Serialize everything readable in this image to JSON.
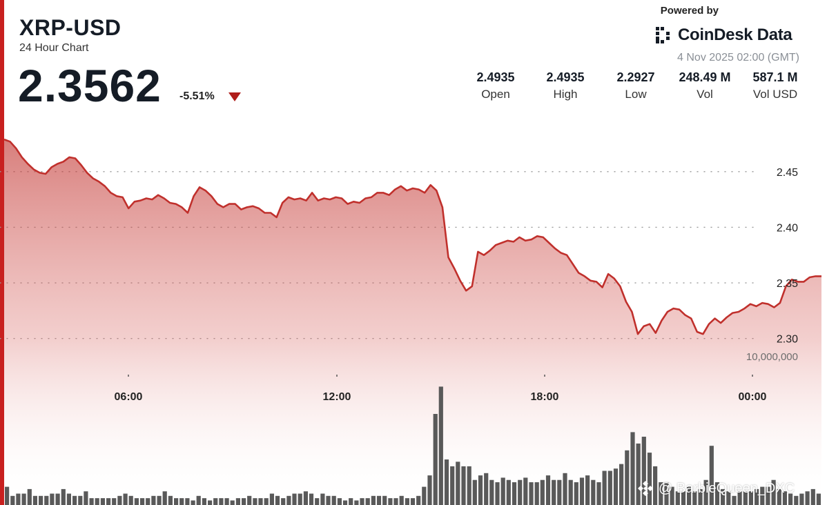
{
  "header": {
    "title": "XRP-USD",
    "subtitle": "24 Hour Chart",
    "price": "2.3562",
    "change": "-5.51%",
    "powered_by": "Powered by",
    "brand": "CoinDesk Data",
    "timestamp": "4 Nov 2025 02:00 (GMT)"
  },
  "stats": [
    {
      "value": "2.4935",
      "label": "Open"
    },
    {
      "value": "2.4935",
      "label": "High"
    },
    {
      "value": "2.2927",
      "label": "Low"
    },
    {
      "value": "248.49 M",
      "label": "Vol"
    },
    {
      "value": "587.1 M",
      "label": "Vol USD"
    }
  ],
  "watermark": "@ BarbieQueen_DXC",
  "colors": {
    "accent": "#c8201f",
    "line": "#c0302c",
    "volume": "#555555",
    "text": "#151c26"
  },
  "chart_data": [
    {
      "type": "area",
      "x_tick_labels": [
        "06:00",
        "12:00",
        "18:00",
        "00:00"
      ],
      "y_tick_labels": [
        "2.45",
        "2.40",
        "2.35",
        "2.30"
      ],
      "ylim": [
        2.288,
        2.484
      ],
      "grid": true,
      "series": [
        {
          "values": [
            2.479,
            2.477,
            2.471,
            2.463,
            2.457,
            2.452,
            2.449,
            2.448,
            2.454,
            2.457,
            2.459,
            2.463,
            2.462,
            2.456,
            2.449,
            2.444,
            2.441,
            2.437,
            2.431,
            2.428,
            2.427,
            2.417,
            2.423,
            2.424,
            2.426,
            2.425,
            2.429,
            2.426,
            2.422,
            2.421,
            2.418,
            2.413,
            2.428,
            2.436,
            2.433,
            2.428,
            2.421,
            2.418,
            2.421,
            2.421,
            2.416,
            2.418,
            2.419,
            2.417,
            2.413,
            2.413,
            2.409,
            2.422,
            2.427,
            2.425,
            2.426,
            2.424,
            2.431,
            2.424,
            2.426,
            2.425,
            2.427,
            2.426,
            2.421,
            2.423,
            2.422,
            2.426,
            2.427,
            2.431,
            2.431,
            2.429,
            2.434,
            2.437,
            2.433,
            2.435,
            2.434,
            2.431,
            2.438,
            2.433,
            2.418,
            2.373,
            2.363,
            2.352,
            2.343,
            2.347,
            2.378,
            2.375,
            2.379,
            2.384,
            2.386,
            2.388,
            2.387,
            2.391,
            2.388,
            2.389,
            2.392,
            2.391,
            2.386,
            2.381,
            2.377,
            2.375,
            2.367,
            2.359,
            2.356,
            2.352,
            2.351,
            2.346,
            2.358,
            2.354,
            2.347,
            2.333,
            2.324,
            2.304,
            2.311,
            2.313,
            2.305,
            2.316,
            2.324,
            2.327,
            2.326,
            2.321,
            2.318,
            2.306,
            2.304,
            2.313,
            2.318,
            2.314,
            2.319,
            2.323,
            2.324,
            2.327,
            2.331,
            2.329,
            2.332,
            2.331,
            2.328,
            2.332,
            2.347,
            2.353,
            2.351,
            2.351,
            2.355,
            2.356,
            2.356
          ]
        }
      ]
    },
    {
      "type": "bar",
      "axis_label": "10,000,000",
      "values": [
        8,
        4,
        5,
        5,
        7,
        4,
        4,
        4,
        5,
        5,
        7,
        5,
        4,
        4,
        6,
        3,
        3,
        3,
        3,
        3,
        4,
        5,
        4,
        3,
        3,
        3,
        4,
        4,
        6,
        4,
        3,
        3,
        3,
        2,
        4,
        3,
        2,
        3,
        3,
        3,
        2,
        3,
        3,
        4,
        3,
        3,
        3,
        5,
        4,
        3,
        4,
        5,
        5,
        6,
        5,
        3,
        5,
        4,
        4,
        3,
        2,
        3,
        2,
        3,
        3,
        4,
        4,
        4,
        3,
        3,
        4,
        3,
        3,
        4,
        8,
        13,
        40,
        52,
        20,
        17,
        19,
        17,
        17,
        11,
        13,
        14,
        11,
        10,
        12,
        11,
        10,
        11,
        12,
        10,
        10,
        11,
        13,
        11,
        11,
        14,
        11,
        10,
        12,
        13,
        11,
        10,
        15,
        15,
        16,
        18,
        24,
        32,
        27,
        30,
        23,
        17,
        10,
        10,
        8,
        6,
        6,
        8,
        6,
        7,
        11,
        26,
        10,
        7,
        6,
        4,
        6,
        6,
        6,
        7,
        8,
        8,
        11,
        7,
        6,
        5,
        4,
        5,
        6,
        7,
        5
      ]
    }
  ]
}
